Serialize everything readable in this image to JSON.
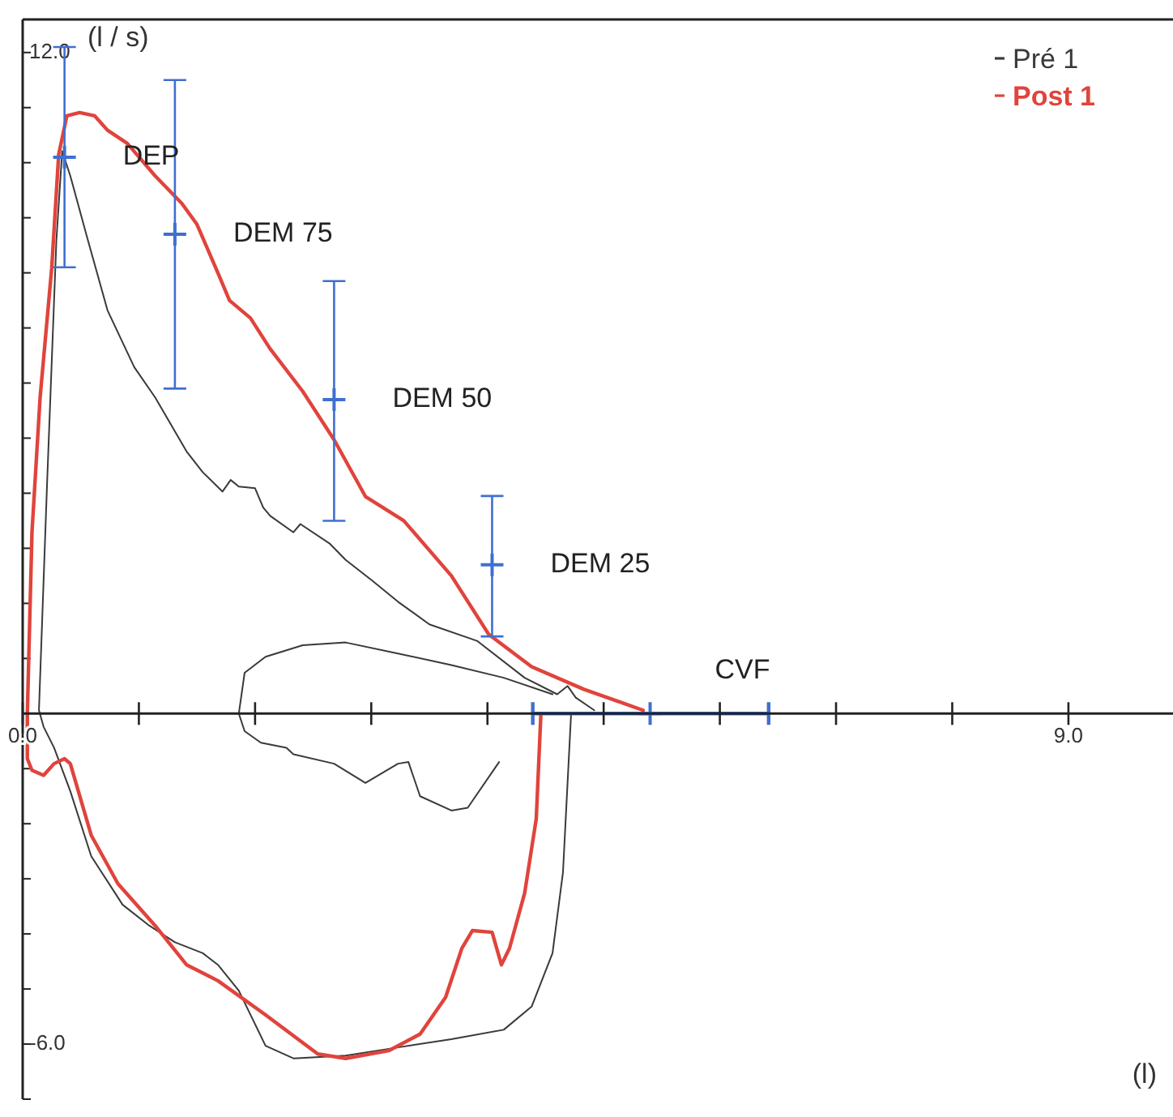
{
  "chart_data": {
    "type": "line",
    "xlabel": "(l)",
    "ylabel": "(l / s)",
    "xlim": [
      0,
      9.9
    ],
    "ylim": [
      -7,
      12.6
    ],
    "xticks": [
      {
        "value": 0,
        "label": "0.0"
      },
      {
        "value": 1,
        "label": null
      },
      {
        "value": 2,
        "label": null
      },
      {
        "value": 3,
        "label": null
      },
      {
        "value": 4,
        "label": null
      },
      {
        "value": 5,
        "label": null
      },
      {
        "value": 6,
        "label": null
      },
      {
        "value": 7,
        "label": null
      },
      {
        "value": 8,
        "label": null
      },
      {
        "value": 9,
        "label": "9.0"
      }
    ],
    "yticks": [
      {
        "value": -7,
        "label": null
      },
      {
        "value": -6,
        "label": "-6.0"
      },
      {
        "value": -5,
        "label": null
      },
      {
        "value": -4,
        "label": null
      },
      {
        "value": -3,
        "label": null
      },
      {
        "value": -2,
        "label": null
      },
      {
        "value": -1,
        "label": null
      },
      {
        "value": 1,
        "label": null
      },
      {
        "value": 2,
        "label": null
      },
      {
        "value": 3,
        "label": null
      },
      {
        "value": 4,
        "label": null
      },
      {
        "value": 5,
        "label": null
      },
      {
        "value": 6,
        "label": null
      },
      {
        "value": 7,
        "label": null
      },
      {
        "value": 8,
        "label": null
      },
      {
        "value": 9,
        "label": null
      },
      {
        "value": 10,
        "label": null
      },
      {
        "value": 11,
        "label": null
      },
      {
        "value": 12,
        "label": "12.0"
      }
    ],
    "legend": "top right",
    "series": [
      {
        "name": "Pré 1",
        "color": "#3a3a3a",
        "x": [
          4.72,
          4.65,
          4.56,
          4.38,
          4.14,
          3.69,
          3.23,
          2.78,
          2.33,
          2.09,
          1.86,
          1.68,
          1.55,
          1.31,
          1.09,
          0.86,
          0.59,
          0.41,
          0.27,
          0.18,
          0.14,
          0.21,
          0.29,
          0.34,
          0.41,
          0.55,
          0.73,
          0.96,
          1.14,
          1.41,
          1.55,
          1.72,
          1.79,
          1.86,
          2.0,
          2.07,
          2.13,
          2.33,
          2.39,
          2.64,
          2.78,
          3.01,
          3.23,
          3.5,
          3.91,
          4.32,
          4.6,
          4.69,
          4.76,
          4.92,
          null,
          4.56,
          4.14,
          3.69,
          3.23,
          2.78,
          2.41,
          2.09,
          1.91,
          1.86,
          1.91,
          2.05,
          2.27,
          2.33,
          2.68,
          2.95,
          3.23,
          3.32,
          3.42,
          3.69,
          3.83,
          4.1
        ],
        "values": [
          0,
          -2.88,
          -4.35,
          -5.32,
          -5.74,
          -5.91,
          -6.06,
          -6.21,
          -6.26,
          -6.03,
          -5.03,
          -4.56,
          -4.35,
          -4.15,
          -3.85,
          -3.47,
          -2.59,
          -1.41,
          -0.62,
          -0.24,
          0.06,
          4.18,
          8.59,
          10.21,
          9.76,
          8.68,
          7.32,
          6.29,
          5.74,
          4.76,
          4.38,
          4.03,
          4.24,
          4.12,
          4.09,
          3.74,
          3.59,
          3.29,
          3.44,
          3.09,
          2.79,
          2.41,
          2.03,
          1.62,
          1.32,
          0.65,
          0.35,
          0.5,
          0.29,
          0.06,
          null,
          0.35,
          0.65,
          0.88,
          1.09,
          1.29,
          1.24,
          1.03,
          0.74,
          0,
          -0.32,
          -0.53,
          -0.62,
          -0.74,
          -0.91,
          -1.26,
          -0.91,
          -0.88,
          -1.5,
          -1.76,
          -1.71,
          -0.88
        ]
      },
      {
        "name": "Post 1",
        "color": "#e0443c",
        "x": [
          4.46,
          4.42,
          4.32,
          4.19,
          4.12,
          4.04,
          3.87,
          3.78,
          3.64,
          3.42,
          3.15,
          2.78,
          2.54,
          2.09,
          1.68,
          1.41,
          1.14,
          0.82,
          0.59,
          0.41,
          0.36,
          0.27,
          0.18,
          0.08,
          0.04,
          0.04,
          0.08,
          0.15,
          0.25,
          0.31,
          0.38,
          0.49,
          0.62,
          0.73,
          0.9,
          1.14,
          1.37,
          1.5,
          1.68,
          1.78,
          1.96,
          2.13,
          2.41,
          2.68,
          2.95,
          3.28,
          3.69,
          4.01,
          4.38,
          4.83,
          5.34
        ],
        "values": [
          0,
          -1.91,
          -3.26,
          -4.26,
          -4.56,
          -3.97,
          -3.94,
          -4.26,
          -5.15,
          -5.82,
          -6.12,
          -6.26,
          -6.18,
          -5.47,
          -4.85,
          -4.56,
          -3.85,
          -3.09,
          -2.21,
          -0.91,
          -0.82,
          -0.91,
          -1.12,
          -1.03,
          -0.82,
          0,
          3.29,
          5.74,
          8.09,
          10.15,
          10.85,
          10.91,
          10.85,
          10.59,
          10.35,
          9.76,
          9.26,
          8.88,
          8.0,
          7.5,
          7.18,
          6.62,
          5.85,
          4.97,
          3.94,
          3.5,
          2.5,
          1.44,
          0.85,
          0.44,
          0.06
        ]
      },
      {
        "color": "#3f6fd0",
        "type": "scatter",
        "marker": "cross",
        "x": [
          0.36,
          1.31,
          2.68,
          4.04,
          5.4
        ],
        "values": [
          10.1,
          8.7,
          5.7,
          2.7,
          0
        ],
        "errors": [
          [
            8.1,
            12.1
          ],
          [
            5.9,
            11.5
          ],
          [
            3.5,
            7.85
          ],
          [
            1.4,
            3.95
          ],
          null
        ],
        "xerrors": [
          null,
          null,
          null,
          null,
          [
            4.39,
            6.42
          ]
        ]
      }
    ],
    "annotations": [
      {
        "text": "DEP",
        "x": 0.36,
        "y": 10.1
      },
      {
        "text": "DEM 75",
        "x": 1.31,
        "y": 8.7
      },
      {
        "text": "DEM 50",
        "x": 2.68,
        "y": 5.7
      },
      {
        "text": "DEM 25",
        "x": 4.04,
        "y": 2.7
      },
      {
        "text": "CVF",
        "x": 5.4,
        "y": 0
      }
    ]
  }
}
